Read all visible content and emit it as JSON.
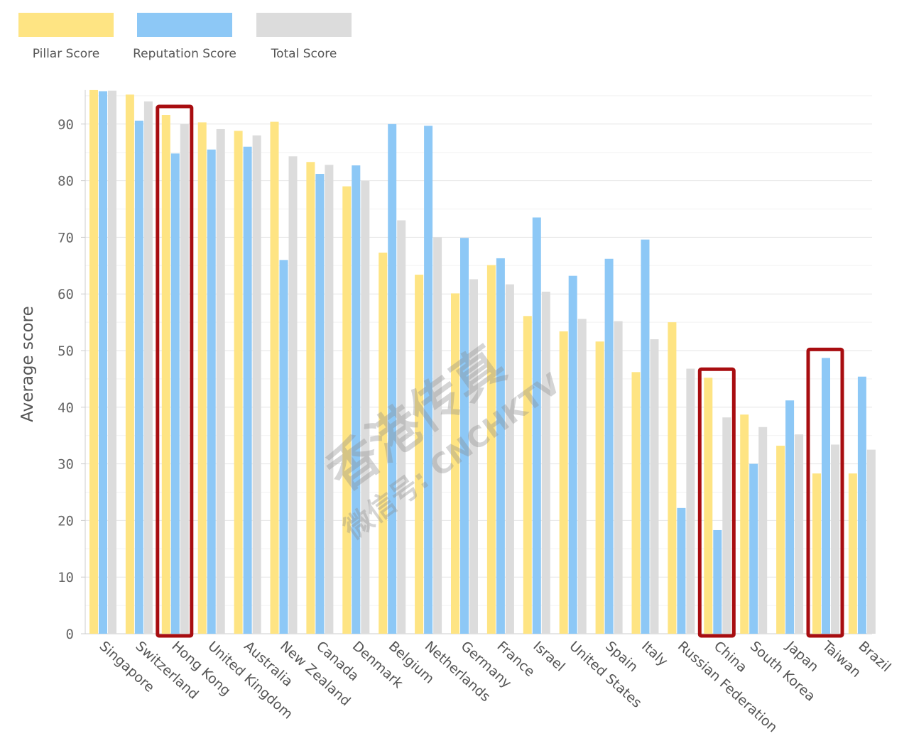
{
  "chart_data": {
    "type": "bar",
    "title": "",
    "xlabel": "",
    "ylabel": "Average score",
    "ylim": [
      0,
      96
    ],
    "yticks": [
      0,
      10,
      20,
      30,
      40,
      50,
      60,
      70,
      80,
      90
    ],
    "grid": true,
    "legend_position": "top-left",
    "categories": [
      "Singapore",
      "Switzerland",
      "Hong Kong",
      "United Kingdom",
      "Australia",
      "New Zealand",
      "Canada",
      "Denmark",
      "Belgium",
      "Netherlands",
      "Germany",
      "France",
      "Israel",
      "United States",
      "Spain",
      "Italy",
      "Russian Federation",
      "China",
      "South Korea",
      "Japan",
      "Taiwan",
      "Brazil"
    ],
    "series": [
      {
        "name": "Pillar Score",
        "color": "#FEE483",
        "values": [
          96,
          95.2,
          91.6,
          90.3,
          88.8,
          90.4,
          83.3,
          79,
          67.3,
          63.4,
          60.1,
          65.1,
          56.1,
          53.4,
          51.6,
          46.2,
          55,
          45.2,
          38.7,
          33.2,
          28.3,
          28.3
        ]
      },
      {
        "name": "Reputation Score",
        "color": "#8DC8F6",
        "values": [
          95.8,
          90.6,
          84.8,
          85.5,
          86,
          66,
          81.2,
          82.7,
          90,
          89.7,
          69.9,
          66.3,
          73.5,
          63.2,
          66.2,
          69.6,
          22.2,
          18.3,
          30,
          41.2,
          48.7,
          45.4
        ]
      },
      {
        "name": "Total Score",
        "color": "#DCDCDC",
        "values": [
          95.9,
          94,
          90,
          89.1,
          88,
          84.3,
          82.8,
          80,
          73,
          70,
          62.6,
          61.7,
          60.4,
          55.6,
          55.2,
          52,
          46.8,
          38.2,
          36.5,
          35.2,
          33.4,
          32.5
        ]
      }
    ],
    "highlighted_categories": [
      "Hong Kong",
      "China",
      "Taiwan"
    ],
    "highlight_color": "#A80D10",
    "watermark": [
      "香港传真",
      "微信号: CNCHKTV"
    ]
  }
}
